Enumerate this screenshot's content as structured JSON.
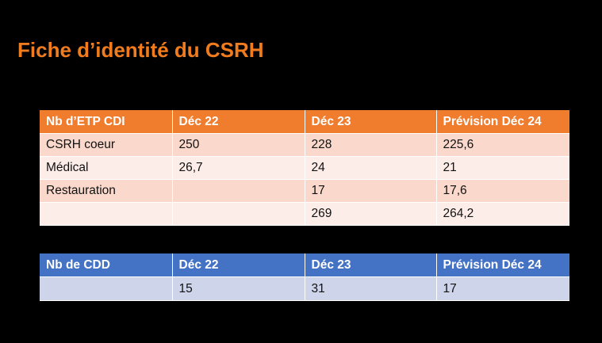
{
  "slide": {
    "title": "Fiche d’identité du CSRH"
  },
  "etp_table": {
    "headers": [
      "Nb d’ETP CDI",
      "Déc 22",
      "Déc 23",
      "Prévision Déc 24"
    ],
    "rows": [
      [
        "CSRH coeur",
        "250",
        "228",
        "225,6"
      ],
      [
        "Médical",
        "26,7",
        "24",
        "21"
      ],
      [
        "Restauration",
        "",
        "17",
        "17,6"
      ],
      [
        "",
        "",
        "269",
        "264,2"
      ]
    ]
  },
  "cdd_table": {
    "headers": [
      "Nb de CDD",
      "Déc 22",
      "Déc 23",
      "Prévision Déc 24"
    ],
    "rows": [
      [
        "",
        "15",
        "31",
        "17"
      ]
    ]
  },
  "colors": {
    "title": "#F07C1E",
    "etp_header": "#F07C2E",
    "etp_row_dark": "#FAD9CC",
    "etp_row_light": "#FDEDE8",
    "cdd_header": "#4472C4",
    "cdd_row": "#CED5EA",
    "background": "#000000"
  }
}
